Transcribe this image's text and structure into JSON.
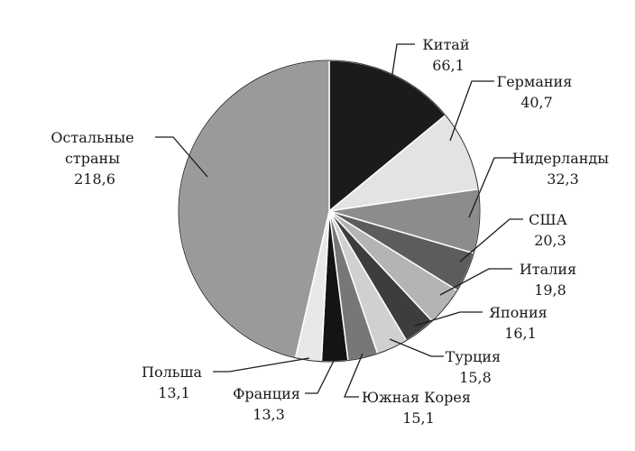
{
  "chart_data": {
    "type": "pie",
    "title": "",
    "slices": [
      {
        "name": "Китай",
        "value_text": "66,1",
        "value": 66.1,
        "color": "#1b1b1b"
      },
      {
        "name": "Германия",
        "value_text": "40,7",
        "value": 40.7,
        "color": "#e3e3e3"
      },
      {
        "name": "Нидерланды",
        "value_text": "32,3",
        "value": 32.3,
        "color": "#8c8c8c"
      },
      {
        "name": "США",
        "value_text": "20,3",
        "value": 20.3,
        "color": "#5c5c5c"
      },
      {
        "name": "Италия",
        "value_text": "19,8",
        "value": 19.8,
        "color": "#b4b4b4"
      },
      {
        "name": "Япония",
        "value_text": "16,1",
        "value": 16.1,
        "color": "#3d3d3d"
      },
      {
        "name": "Турция",
        "value_text": "15,8",
        "value": 15.8,
        "color": "#d0d0d0"
      },
      {
        "name": "Южная Корея",
        "value_text": "15,1",
        "value": 15.1,
        "color": "#777777"
      },
      {
        "name": "Франция",
        "value_text": "13,3",
        "value": 13.3,
        "color": "#141414"
      },
      {
        "name": "Польша",
        "value_text": "13,1",
        "value": 13.1,
        "color": "#e8e8e8"
      },
      {
        "name": "Остальные страны",
        "value_text": "218,6",
        "value": 218.6,
        "color": "#9a9a9a"
      }
    ]
  }
}
